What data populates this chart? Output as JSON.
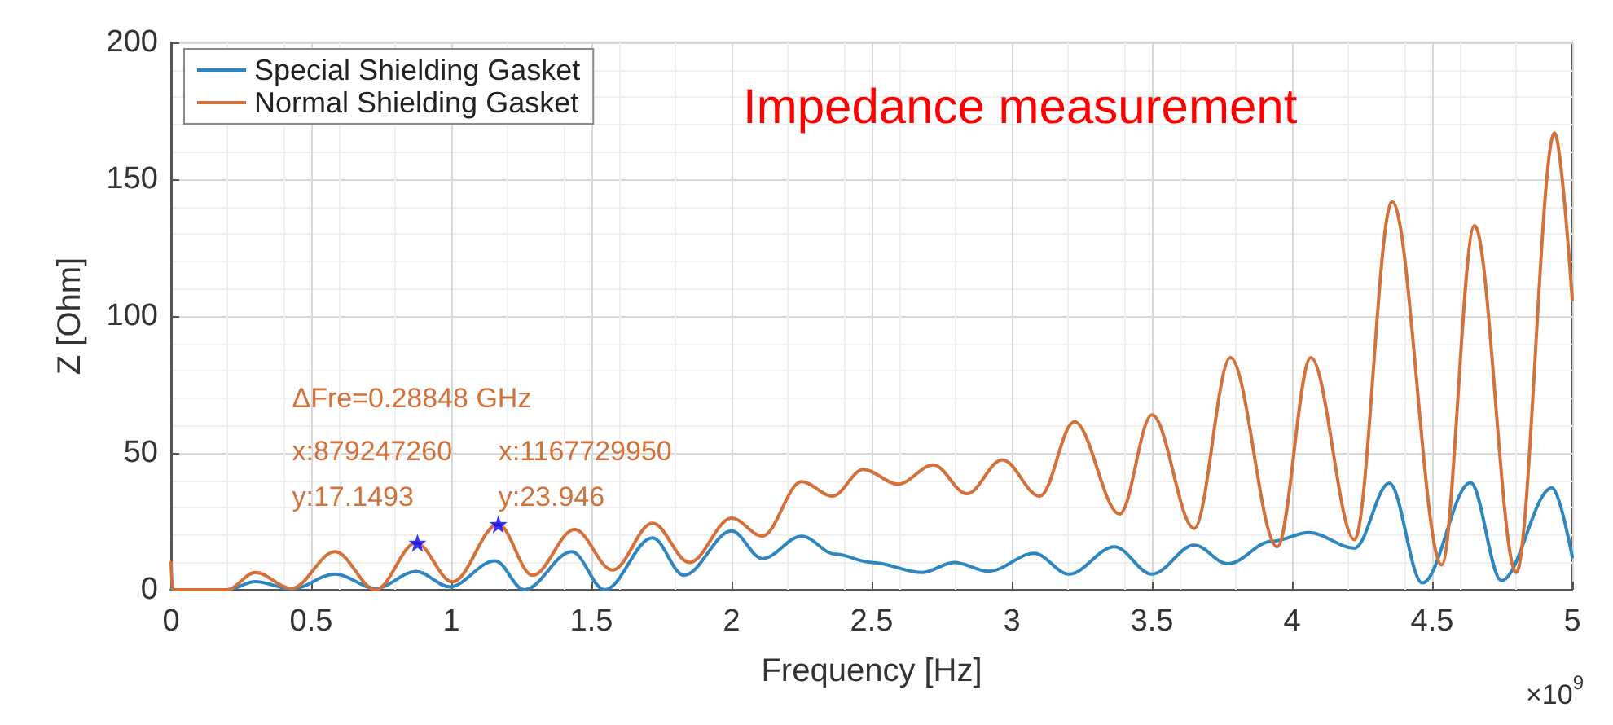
{
  "chart_data": {
    "type": "line",
    "title": "Impedance measurement",
    "xlabel": "Frequency [Hz]",
    "ylabel": "Z [Ohm]",
    "xlim": [
      0,
      5
    ],
    "ylim": [
      0,
      200
    ],
    "xticks": [
      0,
      0.5,
      1,
      1.5,
      2,
      2.5,
      3,
      3.5,
      4,
      4.5,
      5
    ],
    "yticks": [
      0,
      50,
      100,
      150,
      200
    ],
    "grid": true,
    "legend": "top left",
    "marker": "none",
    "line_style": "solid",
    "annotations": [
      "ΔFre=0.28848 GHz",
      "×10$^{9}$",
      {
        "text": "x:879247260\ny:17.1493",
        "x": 0.87924726,
        "y": 17.1493
      },
      {
        "text": "x:1167729950\ny:23.946",
        "x": 1.16772995,
        "y": 23.946
      }
    ],
    "series": [
      {
        "name": "Special Shielding Gasket",
        "color": "#2e86c1",
        "x": [
          0,
          0.2,
          0.3,
          0.43,
          0.585,
          0.73,
          0.874,
          0.994,
          1.156,
          1.26,
          1.43,
          1.547,
          1.718,
          1.83,
          2.0,
          2.11,
          2.25,
          2.37,
          2.5,
          2.68,
          2.794,
          2.918,
          3.08,
          3.204,
          3.366,
          3.5,
          3.651,
          3.771,
          3.928,
          4.061,
          4.223,
          4.347,
          4.465,
          4.637,
          4.747,
          4.928,
          5.0
        ],
        "values": [
          0,
          0,
          3,
          0.3,
          5.7,
          0.5,
          6.7,
          1.1,
          10.6,
          0,
          13.9,
          0,
          19,
          5.3,
          21.5,
          11.4,
          19.6,
          13,
          10,
          6.3,
          10,
          6.8,
          13.3,
          5.7,
          15.7,
          5.7,
          16.3,
          9.5,
          17.7,
          20.9,
          15.2,
          39,
          2.5,
          39.1,
          3.4,
          37.3,
          12
        ]
      },
      {
        "name": "Normal Shielding Gasket",
        "color": "#d4703a",
        "x": [
          0,
          0.005,
          0.2,
          0.3,
          0.43,
          0.585,
          0.73,
          0.874,
          1.004,
          1.167,
          1.29,
          1.44,
          1.575,
          1.718,
          1.85,
          2.0,
          2.11,
          2.25,
          2.36,
          2.47,
          2.594,
          2.72,
          2.84,
          2.966,
          3.1,
          3.223,
          3.385,
          3.5,
          3.651,
          3.78,
          3.947,
          4.067,
          4.223,
          4.357,
          4.534,
          4.651,
          4.8,
          4.937,
          5.0
        ],
        "values": [
          10,
          0,
          0,
          6.3,
          0.5,
          13.9,
          0,
          17.1,
          2.9,
          23.9,
          5.3,
          22,
          7.2,
          24.3,
          10,
          26.2,
          19.6,
          39.5,
          34.2,
          44,
          38.6,
          45.6,
          35.1,
          47.5,
          34.2,
          61.4,
          27.7,
          63.9,
          22.4,
          84.8,
          15.7,
          84.8,
          18.3,
          141.8,
          9.1,
          133,
          6.3,
          166.9,
          106
        ]
      },
      {
        "type": "scatter",
        "color": "#0000ff",
        "marker": "star",
        "x": [
          0.87924726,
          1.16772995
        ],
        "values": [
          17.1493,
          23.946
        ]
      }
    ]
  }
}
